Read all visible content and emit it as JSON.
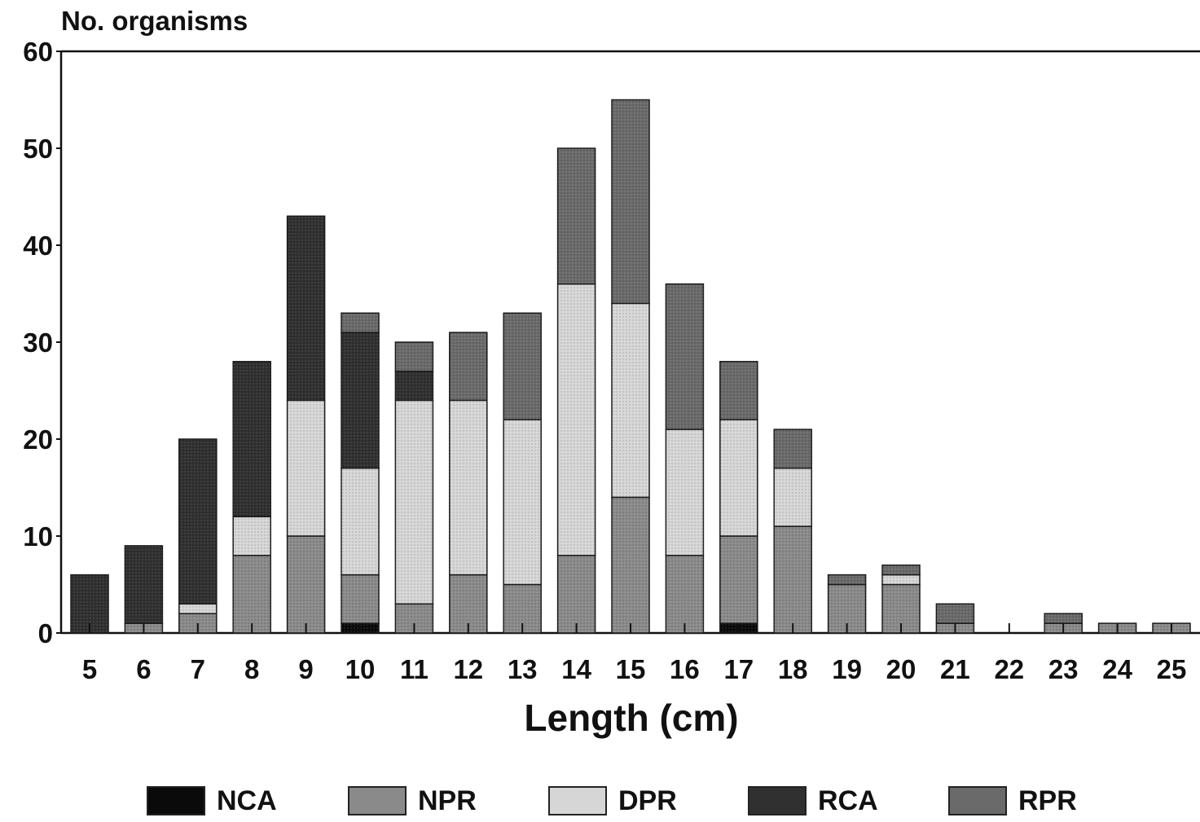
{
  "chart_data": {
    "type": "bar",
    "stacked": true,
    "ylabel": "No. organisms",
    "xlabel": "Length (cm)",
    "categories": [
      "5",
      "6",
      "7",
      "8",
      "9",
      "10",
      "11",
      "12",
      "13",
      "14",
      "15",
      "16",
      "17",
      "18",
      "19",
      "20",
      "21",
      "22",
      "23",
      "24",
      "25"
    ],
    "ylim": [
      0,
      60
    ],
    "yticks": [
      0,
      10,
      20,
      30,
      40,
      50,
      60
    ],
    "grid": false,
    "legend_position": "bottom",
    "series": [
      {
        "name": "NCA",
        "color": "#0a0a0a",
        "values": [
          0,
          0,
          0,
          0,
          0,
          1,
          0,
          0,
          0,
          0,
          0,
          0,
          1,
          0,
          0,
          0,
          0,
          0,
          0,
          0,
          0
        ]
      },
      {
        "name": "NPR",
        "color": "#8a8a8a",
        "values": [
          0,
          1,
          2,
          8,
          10,
          5,
          3,
          6,
          5,
          8,
          14,
          8,
          9,
          11,
          5,
          5,
          1,
          0,
          1,
          1,
          1
        ]
      },
      {
        "name": "DPR",
        "color": "#d6d6d6",
        "values": [
          0,
          0,
          1,
          4,
          14,
          11,
          21,
          18,
          17,
          28,
          20,
          13,
          12,
          6,
          0,
          1,
          0,
          0,
          0,
          0,
          0
        ]
      },
      {
        "name": "RCA",
        "color": "#303030",
        "values": [
          6,
          8,
          17,
          16,
          19,
          14,
          3,
          0,
          0,
          0,
          0,
          0,
          0,
          0,
          0,
          0,
          0,
          0,
          0,
          0,
          0
        ]
      },
      {
        "name": "RPR",
        "color": "#6a6a6a",
        "values": [
          0,
          0,
          0,
          0,
          0,
          2,
          3,
          7,
          11,
          14,
          21,
          15,
          6,
          4,
          1,
          1,
          2,
          0,
          1,
          0,
          0
        ]
      }
    ]
  }
}
